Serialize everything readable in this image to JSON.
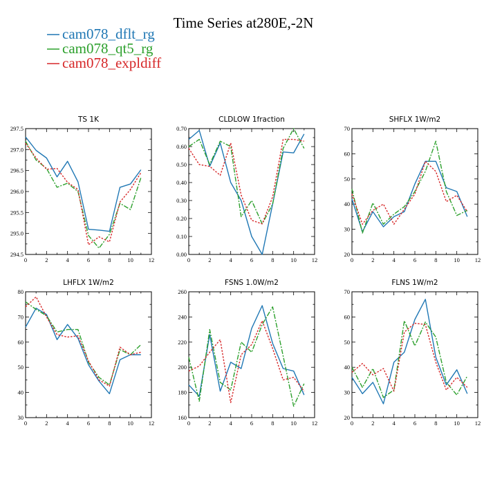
{
  "title": "Time Series at280E,-2N",
  "legend": [
    {
      "label": "cam078_dflt_rg",
      "color": "#1f77b4",
      "dash": "solid"
    },
    {
      "label": "cam078_qt5_rg",
      "color": "#2ca02c",
      "dash": "dashdot"
    },
    {
      "label": "cam078_expldiff",
      "color": "#d62728",
      "dash": "dotted"
    }
  ],
  "chart_data": [
    {
      "type": "line",
      "title": "TS   1K",
      "xlim": [
        0,
        12
      ],
      "ylim": [
        294.5,
        297.5
      ],
      "xticks": [
        "0",
        "2",
        "4",
        "6",
        "8",
        "10",
        "12"
      ],
      "yticks": [
        "294.5",
        "295.0",
        "295.5",
        "296.0",
        "296.5",
        "297.0",
        "297.5"
      ],
      "x": [
        0,
        1,
        2,
        3,
        4,
        5,
        6,
        7,
        8,
        9,
        10,
        11
      ],
      "series": [
        {
          "name": "cam078_dflt_rg",
          "values": [
            297.3,
            296.98,
            296.8,
            296.35,
            296.72,
            296.23,
            295.1,
            295.08,
            295.05,
            296.1,
            296.18,
            296.52
          ]
        },
        {
          "name": "cam078_qt5_rg",
          "values": [
            297.2,
            296.75,
            296.55,
            296.1,
            296.2,
            296.0,
            294.95,
            294.65,
            294.98,
            295.72,
            295.57,
            296.33
          ]
        },
        {
          "name": "cam078_expldiff",
          "values": [
            297.15,
            296.8,
            296.53,
            296.55,
            296.22,
            296.05,
            294.73,
            294.92,
            294.8,
            295.75,
            296.05,
            296.45
          ]
        }
      ]
    },
    {
      "type": "line",
      "title": "CLDLOW   1fraction",
      "xlim": [
        0,
        12
      ],
      "ylim": [
        0,
        0.7
      ],
      "xticks": [
        "0",
        "2",
        "4",
        "6",
        "8",
        "10",
        "12"
      ],
      "yticks": [
        "0.00",
        "0.10",
        "0.20",
        "0.30",
        "0.40",
        "0.50",
        "0.60",
        "0.70"
      ],
      "x": [
        0,
        1,
        2,
        3,
        4,
        5,
        6,
        7,
        8,
        9,
        10,
        11
      ],
      "series": [
        {
          "name": "cam078_dflt_rg",
          "values": [
            0.64,
            0.69,
            0.49,
            0.62,
            0.4,
            0.3,
            0.1,
            0.0,
            0.28,
            0.57,
            0.565,
            0.67
          ]
        },
        {
          "name": "cam078_qt5_rg",
          "values": [
            0.6,
            0.64,
            0.5,
            0.63,
            0.6,
            0.21,
            0.3,
            0.17,
            0.28,
            0.59,
            0.7,
            0.59
          ]
        },
        {
          "name": "cam078_expldiff",
          "values": [
            0.59,
            0.5,
            0.49,
            0.44,
            0.62,
            0.33,
            0.19,
            0.17,
            0.32,
            0.64,
            0.64,
            0.63
          ]
        }
      ]
    },
    {
      "type": "line",
      "title": "SHFLX   1W/m2",
      "xlim": [
        0,
        12
      ],
      "ylim": [
        20,
        70
      ],
      "xticks": [
        "0",
        "2",
        "4",
        "6",
        "8",
        "10",
        "12"
      ],
      "yticks": [
        "20",
        "30",
        "40",
        "50",
        "60",
        "70"
      ],
      "x": [
        0,
        1,
        2,
        3,
        4,
        5,
        6,
        7,
        8,
        9,
        10,
        11
      ],
      "series": [
        {
          "name": "cam078_dflt_rg",
          "values": [
            42,
            29,
            37,
            31,
            35,
            37,
            48,
            57,
            57,
            46.5,
            45,
            35
          ]
        },
        {
          "name": "cam078_qt5_rg",
          "values": [
            46,
            28.5,
            40.5,
            32,
            36,
            39,
            45,
            53,
            65,
            45,
            35.5,
            37.5
          ]
        },
        {
          "name": "cam078_expldiff",
          "values": [
            44,
            32,
            37.5,
            40,
            32,
            38,
            44,
            57,
            53,
            41,
            43.5,
            37
          ]
        }
      ]
    },
    {
      "type": "line",
      "title": "LHFLX   1W/m2",
      "xlim": [
        0,
        12
      ],
      "ylim": [
        30,
        80
      ],
      "xticks": [
        "0",
        "2",
        "4",
        "6",
        "8",
        "10",
        "12"
      ],
      "yticks": [
        "30",
        "40",
        "50",
        "60",
        "70",
        "80"
      ],
      "x": [
        0,
        1,
        2,
        3,
        4,
        5,
        6,
        7,
        8,
        9,
        10,
        11
      ],
      "series": [
        {
          "name": "cam078_dflt_rg",
          "values": [
            66,
            73.5,
            71,
            61,
            67,
            61.5,
            51,
            44.5,
            39.5,
            53,
            55,
            55
          ]
        },
        {
          "name": "cam078_qt5_rg",
          "values": [
            76,
            73,
            70.5,
            64,
            65,
            65,
            52,
            46,
            43,
            57,
            55,
            59
          ]
        },
        {
          "name": "cam078_expldiff",
          "values": [
            74,
            78,
            70,
            63,
            62,
            62.5,
            52.5,
            45,
            42.5,
            58,
            55,
            56
          ]
        }
      ]
    },
    {
      "type": "line",
      "title": "FSNS   1.0W/m2",
      "xlim": [
        0,
        12
      ],
      "ylim": [
        160,
        260
      ],
      "xticks": [
        "0",
        "2",
        "4",
        "6",
        "8",
        "10",
        "12"
      ],
      "yticks": [
        "160",
        "180",
        "200",
        "220",
        "240",
        "260"
      ],
      "x": [
        0,
        1,
        2,
        3,
        4,
        5,
        6,
        7,
        8,
        9,
        10,
        11
      ],
      "series": [
        {
          "name": "cam078_dflt_rg",
          "values": [
            186,
            177,
            226,
            181,
            204,
            199,
            231,
            249,
            219,
            199,
            197,
            178
          ]
        },
        {
          "name": "cam078_qt5_rg",
          "values": [
            208,
            173,
            230,
            188,
            182,
            220,
            212,
            234,
            248,
            209,
            169,
            187
          ]
        },
        {
          "name": "cam078_expldiff",
          "values": [
            197,
            201,
            212,
            222,
            172,
            210,
            218,
            237,
            215,
            190,
            192,
            181
          ]
        }
      ]
    },
    {
      "type": "line",
      "title": "FLNS   1W/m2",
      "xlim": [
        0,
        12
      ],
      "ylim": [
        20,
        70
      ],
      "xticks": [
        "0",
        "2",
        "4",
        "6",
        "8",
        "10",
        "12"
      ],
      "yticks": [
        "20",
        "30",
        "40",
        "50",
        "60",
        "70"
      ],
      "x": [
        0,
        1,
        2,
        3,
        4,
        5,
        6,
        7,
        8,
        9,
        10,
        11
      ],
      "series": [
        {
          "name": "cam078_dflt_rg",
          "values": [
            36,
            29.5,
            34,
            25.5,
            42,
            46,
            59,
            67,
            44,
            33,
            39,
            29.5
          ]
        },
        {
          "name": "cam078_qt5_rg",
          "values": [
            40,
            32,
            39.5,
            28,
            31,
            58.5,
            48.5,
            58,
            52,
            34,
            29,
            36.5
          ]
        },
        {
          "name": "cam078_expldiff",
          "values": [
            38,
            41.5,
            37,
            39.5,
            30.5,
            54,
            57.5,
            57,
            42,
            31,
            36,
            32
          ]
        }
      ]
    }
  ]
}
